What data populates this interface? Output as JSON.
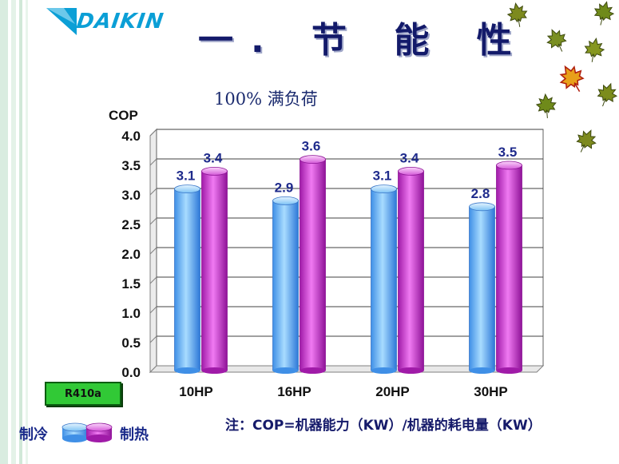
{
  "brand": {
    "name": "DAIKIN",
    "color": "#0b9fd6"
  },
  "slide_title": "一. 节 能 性",
  "subtitle": "100% 满负荷",
  "badge": {
    "label": "R410a"
  },
  "legend": [
    {
      "label": "制冷",
      "color": "#63b7f4"
    },
    {
      "label": "制热",
      "color": "#c634c9"
    }
  ],
  "footnote": "注：COP=机器能力（KW）/机器的耗电量（KW）",
  "decorations": {
    "icon": "maple-leaf-icon"
  },
  "chart_data": {
    "type": "bar",
    "ylabel": "COP",
    "categories": [
      "10HP",
      "16HP",
      "20HP",
      "30HP"
    ],
    "ylim": [
      0.0,
      4.0
    ],
    "yticks": [
      "0.0",
      "0.5",
      "1.0",
      "1.5",
      "2.0",
      "2.5",
      "3.0",
      "3.5",
      "4.0"
    ],
    "grid": true,
    "series": [
      {
        "name": "制冷",
        "values": [
          3.1,
          2.9,
          3.1,
          2.8
        ],
        "labels": [
          "3.1",
          "2.9",
          "3.1",
          "2.8"
        ]
      },
      {
        "name": "制热",
        "values": [
          3.4,
          3.6,
          3.4,
          3.5
        ],
        "labels": [
          "3.4",
          "3.6",
          "3.4",
          "3.5"
        ]
      }
    ]
  }
}
